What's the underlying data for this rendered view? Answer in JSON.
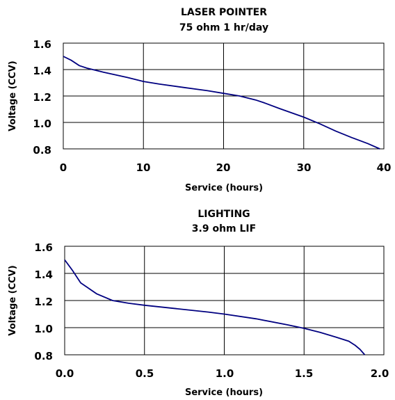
{
  "chart_data": [
    {
      "type": "line",
      "title": [
        "LASER POINTER",
        "75 ohm 1 hr/day"
      ],
      "xlabel": "Service (hours)",
      "ylabel": "Voltage (CCV)",
      "xlim": [
        0,
        40
      ],
      "ylim": [
        0.8,
        1.6
      ],
      "xticks": [
        "0",
        "10",
        "20",
        "30",
        "40"
      ],
      "yticks": [
        "1.6",
        "1.4",
        "1.2",
        "1.0",
        "0.8"
      ],
      "grid": true,
      "series": [
        {
          "color": "#000080",
          "x": [
            0,
            1,
            2,
            3,
            5,
            8,
            10,
            12,
            15,
            18,
            20,
            22,
            23,
            24,
            25,
            27,
            30,
            32,
            34,
            36,
            38,
            39.5
          ],
          "y": [
            1.5,
            1.47,
            1.43,
            1.41,
            1.38,
            1.34,
            1.31,
            1.29,
            1.265,
            1.24,
            1.22,
            1.2,
            1.185,
            1.17,
            1.15,
            1.105,
            1.04,
            0.99,
            0.935,
            0.885,
            0.84,
            0.8
          ]
        }
      ]
    },
    {
      "type": "line",
      "title": [
        "LIGHTING",
        "3.9 ohm LIF"
      ],
      "xlabel": "Service (hours)",
      "ylabel": "Voltage (CCV)",
      "xlim": [
        0,
        2.0
      ],
      "ylim": [
        0.8,
        1.6
      ],
      "xticks": [
        "0.0",
        "0.5",
        "1.0",
        "1.5",
        "2.0"
      ],
      "yticks": [
        "1.6",
        "1.4",
        "1.2",
        "1.0",
        "0.8"
      ],
      "grid": true,
      "series": [
        {
          "color": "#000080",
          "x": [
            0,
            0.05,
            0.1,
            0.15,
            0.2,
            0.3,
            0.4,
            0.5,
            0.7,
            0.9,
            1.0,
            1.2,
            1.4,
            1.5,
            1.6,
            1.7,
            1.78,
            1.82,
            1.85,
            1.88
          ],
          "y": [
            1.5,
            1.42,
            1.33,
            1.29,
            1.25,
            1.2,
            1.18,
            1.165,
            1.14,
            1.115,
            1.1,
            1.065,
            1.02,
            0.995,
            0.965,
            0.93,
            0.9,
            0.87,
            0.84,
            0.8
          ]
        }
      ]
    }
  ]
}
